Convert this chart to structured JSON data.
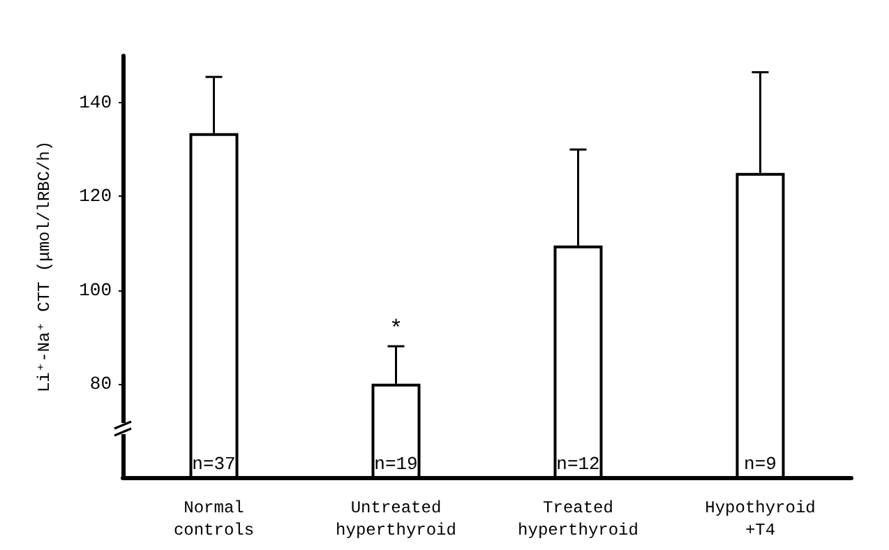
{
  "chart_data": {
    "type": "bar",
    "ylabel": "Li⁺-Na⁺ CTT (μmol/lRBC/h)",
    "categories": [
      "Normal\ncontrols",
      "Untreated\nhyperthyroid",
      "Treated\nhyperthyroid",
      "Hypothyroid\n+T4"
    ],
    "values": [
      133.5,
      80,
      109.5,
      125
    ],
    "errors": [
      [
        133.5,
        145.5
      ],
      [
        80,
        88
      ],
      [
        109.5,
        130
      ],
      [
        125,
        146.5
      ]
    ],
    "color": "#ffffff",
    "ylim": [
      60,
      150
    ],
    "yticks": [
      80,
      100,
      120,
      140
    ],
    "grid": false,
    "annotations": [
      {
        "text": "*",
        "x": "Untreated\nhyperthyroid",
        "y": 88
      },
      {
        "text": "n=37",
        "x": "Normal\ncontrols",
        "y": 60
      },
      {
        "text": "n=19",
        "x": "Untreated\nhyperthyroid",
        "y": 60
      },
      {
        "text": "n=12",
        "x": "Treated\nhyperthyroid",
        "y": 60
      },
      {
        "text": "n=9",
        "x": "Hypothyroid\n+T4",
        "y": 60
      }
    ]
  }
}
